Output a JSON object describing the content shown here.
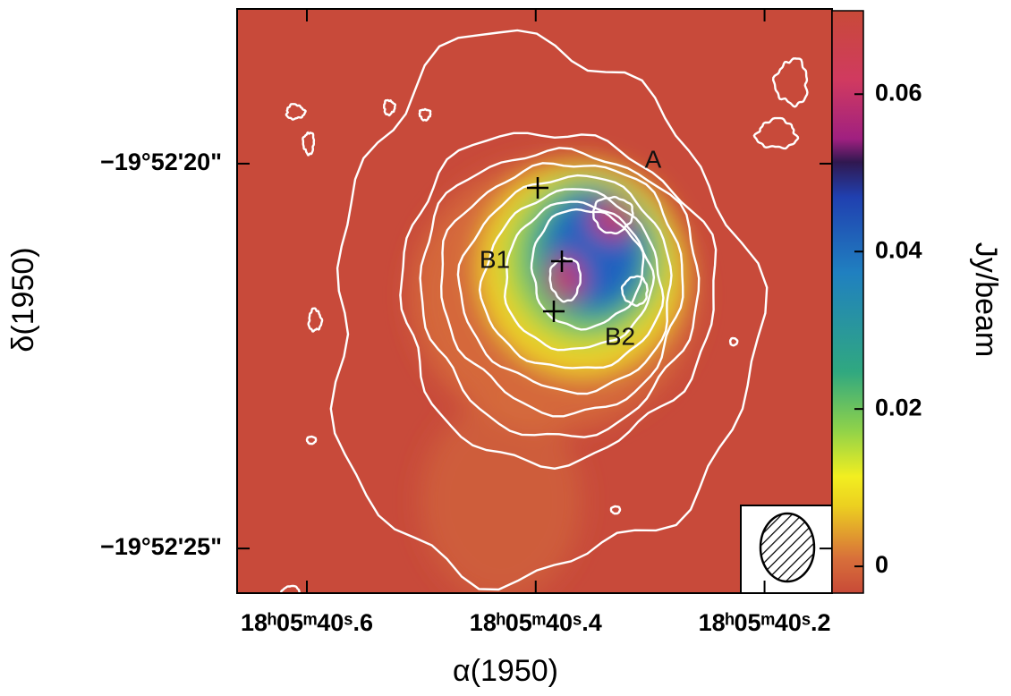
{
  "chart_data": {
    "type": "image",
    "xlabel": "α(1950)",
    "ylabel": "δ(1950)",
    "colorbar_label": "Jy/beam",
    "xlim": [
      40.661,
      40.141
    ],
    "xticks": [
      {
        "value": 40.6,
        "label": "18ʰ05ᵐ40ˢ.6"
      },
      {
        "value": 40.4,
        "label": "18ʰ05ᵐ40ˢ.4"
      },
      {
        "value": 40.2,
        "label": "18ʰ05ᵐ40ˢ.2"
      }
    ],
    "ylim": [
      17.99,
      25.58
    ],
    "yticks": [
      {
        "value": 20,
        "label": "−19°52'20\""
      },
      {
        "value": 25,
        "label": "−19°52'25\""
      }
    ],
    "clim": [
      -0.0034,
      0.0706
    ],
    "cticks": [
      0,
      0.02,
      0.04,
      0.06
    ],
    "annotations": [
      "A",
      "B1",
      "B2"
    ]
  }
}
